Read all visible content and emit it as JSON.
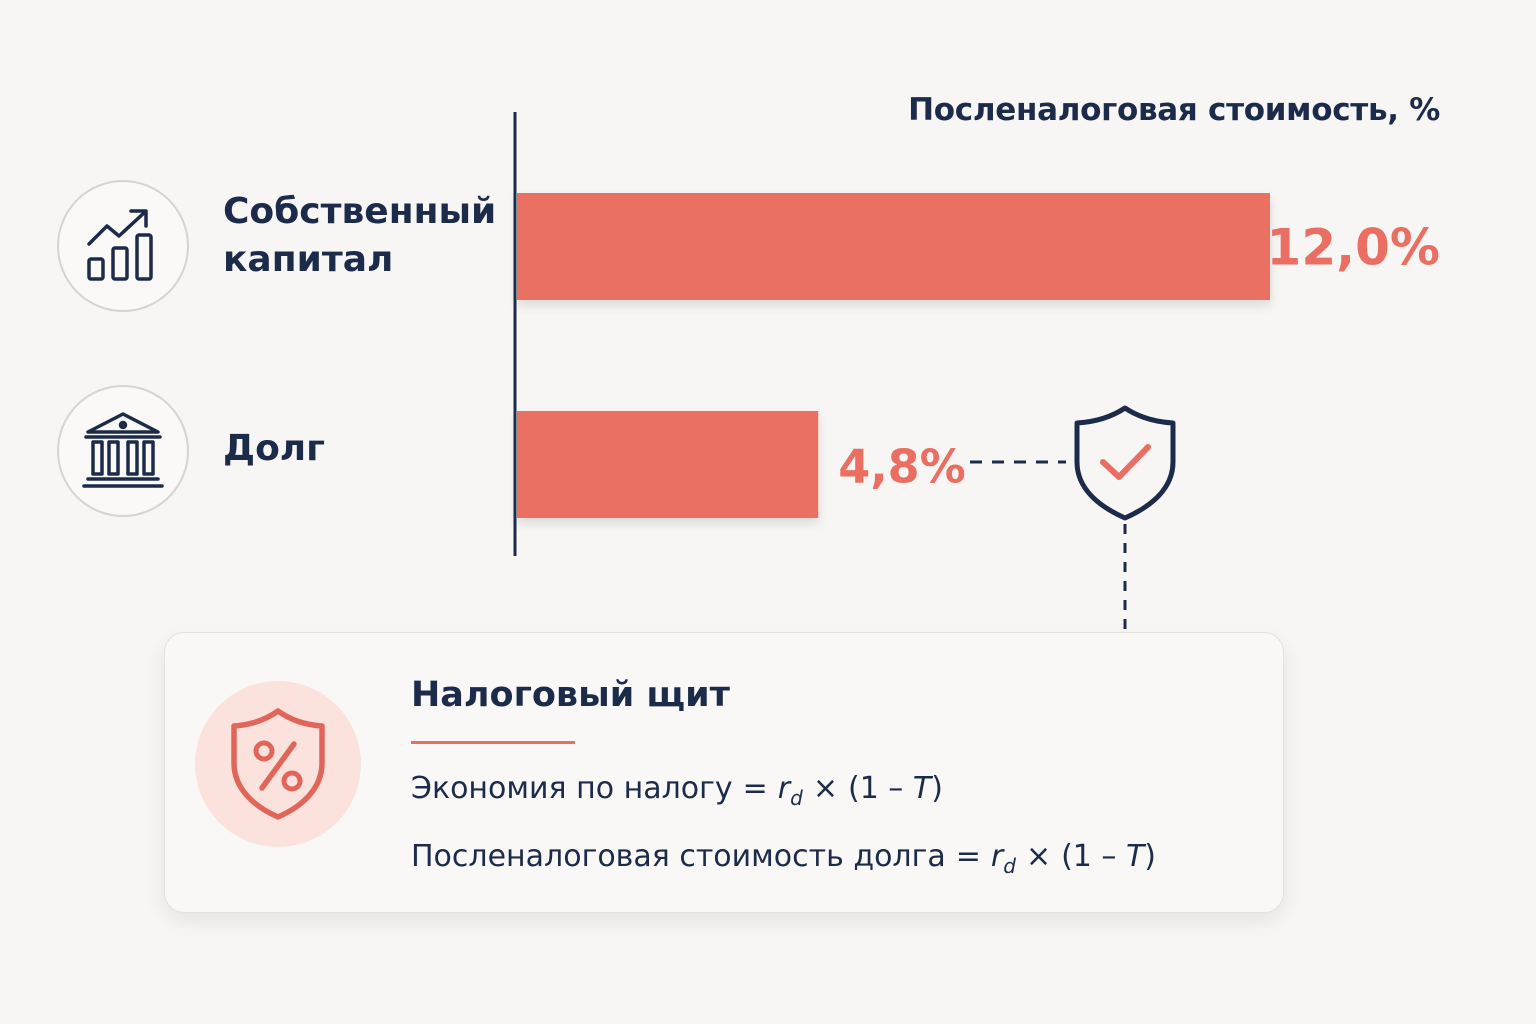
{
  "chart_data": {
    "type": "bar",
    "orientation": "horizontal",
    "xlabel": "Посленалоговая стоимость, %",
    "categories": [
      "Собственный капитал",
      "Долг"
    ],
    "values": [
      12.0,
      4.8
    ],
    "value_labels": [
      "12,0%",
      "4,8%"
    ],
    "xlim": [
      0,
      12.0
    ],
    "grid": false,
    "colors": {
      "bar": "#ea6f62",
      "axis": "#1c2b49",
      "label": "#ea6f62"
    }
  },
  "categories": [
    {
      "label": "Собственный\nкапитал",
      "icon": "growth-chart-icon"
    },
    {
      "label": "Долг",
      "icon": "bank-icon"
    }
  ],
  "callout": {
    "title": "Налоговый щит",
    "icon": "percent-shield-icon",
    "formula1": {
      "left": "Экономия по налогу",
      "eq": "=",
      "r": "r",
      "sub": "d",
      "times": "×",
      "paren_open": "(1 –",
      "T": "T",
      "paren_close": ")"
    },
    "formula2": {
      "left": "Посленалоговая стоимость долга",
      "eq": "=",
      "r": "r",
      "sub": "d",
      "times": "×",
      "paren_open": "(1 –",
      "T": "T",
      "paren_close": ")"
    }
  },
  "marker_icon": "shield-check-icon"
}
